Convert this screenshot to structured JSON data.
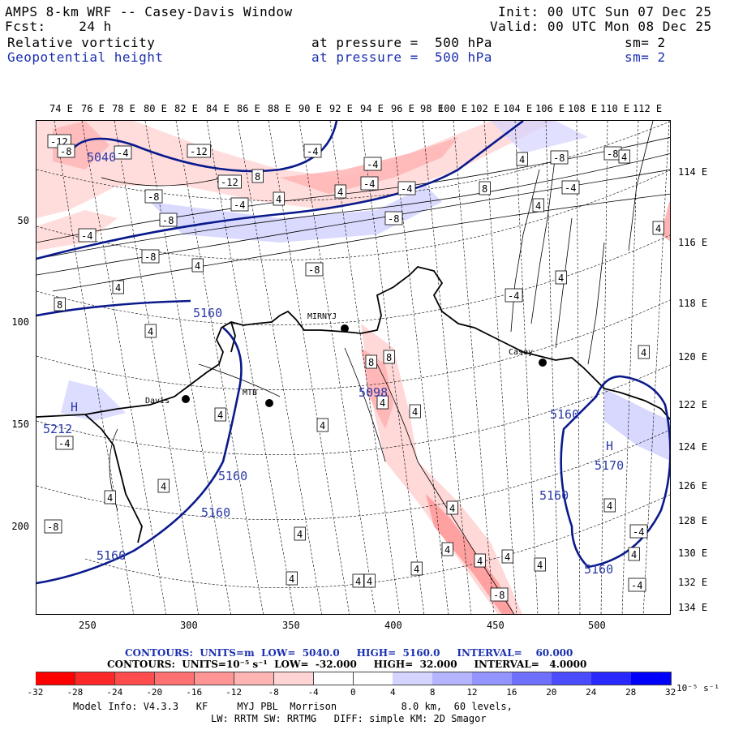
{
  "header": {
    "title": "AMPS 8-km WRF -- Casey-Davis Window",
    "fcst": "Fcst:    24 h",
    "init": "Init: 00 UTC Sun 07 Dec 25",
    "valid": "Valid: 00 UTC Mon 08 Dec 25",
    "field1": "Relative vorticity",
    "field1_level": "at pressure =  500 hPa",
    "field1_sm": "sm= 2",
    "field2": "Geopotential height",
    "field2_level": "at pressure =  500 hPa",
    "field2_sm": "sm= 2"
  },
  "top_lon_labels": [
    "74 E",
    "76 E",
    "78 E",
    "80 E",
    "82 E",
    "84 E",
    "86 E",
    "88 E",
    "90 E",
    "92 E",
    "94 E",
    "96 E",
    "98 E",
    "100 E",
    "102 E",
    "104 E",
    "106 E",
    "108 E",
    "110 E",
    "112 E"
  ],
  "right_lon_labels": [
    "114 E",
    "116 E",
    "118 E",
    "120 E",
    "122 E",
    "124 E",
    "126 E",
    "128 E",
    "130 E",
    "132 E",
    "134 E"
  ],
  "x_axis": [
    "250",
    "300",
    "350",
    "400",
    "450",
    "500"
  ],
  "y_axis": [
    "50",
    "100",
    "150",
    "200"
  ],
  "stations": [
    "MIRNYJ",
    "Casey",
    "Davis",
    "MTB"
  ],
  "height_contours": [
    "5040",
    "5160",
    "5160",
    "5212",
    "5098",
    "5160",
    "5160",
    "5160",
    "5170",
    "5160",
    "5160"
  ],
  "pressure_centers": [
    "H",
    "H"
  ],
  "vorticity_labels": [
    "-12",
    "-8",
    "-4",
    "-12",
    "-8",
    "-8",
    "-12",
    "-4",
    "8",
    "4",
    "-8",
    "-4",
    "4",
    "-4",
    "-4",
    "-8",
    "-4",
    "8",
    "8",
    "4",
    "-8",
    "8",
    "4",
    "4",
    "4",
    "4",
    "4",
    "-8",
    "4",
    "-4",
    "-8",
    "-4",
    "4",
    "4",
    "4",
    "4",
    "-4",
    "-8",
    "-4",
    "-8",
    "4",
    "4",
    "4",
    "4",
    "4",
    "8",
    "4",
    "4",
    "4",
    "4",
    "4",
    "4",
    "-4",
    "4",
    "4",
    "-4",
    "4",
    "4",
    "4"
  ],
  "contour_info_height": "CONTOURS:  UNITS=m  LOW=  5040.0     HIGH=  5160.0     INTERVAL=    60.000",
  "contour_info_vort": "CONTOURS:  UNITS=10⁻⁵ s⁻¹  LOW=  -32.000     HIGH=  32.000     INTERVAL=   4.0000",
  "colorbar": {
    "labels": [
      "-32",
      "-28",
      "-24",
      "-20",
      "-16",
      "-12",
      "-8",
      "-4",
      "0",
      "4",
      "8",
      "12",
      "16",
      "20",
      "24",
      "28",
      "32"
    ],
    "units": "10⁻⁵ s⁻¹",
    "colors": [
      "#ff0000",
      "#ff2828",
      "#ff4c4c",
      "#ff7070",
      "#ff9494",
      "#ffb4b4",
      "#ffd4d4",
      "#ffffff",
      "#ffffff",
      "#d4d4ff",
      "#b4b4ff",
      "#9494ff",
      "#7070ff",
      "#4c4cff",
      "#2828ff",
      "#0000ff"
    ]
  },
  "model_info": {
    "line1": "Model Info: V4.3.3   KF     MYJ PBL  Morrison           8.0 km,  60 levels,",
    "line2": "LW: RRTM SW: RRTMG   DIFF: simple KM: 2D Smagor"
  }
}
